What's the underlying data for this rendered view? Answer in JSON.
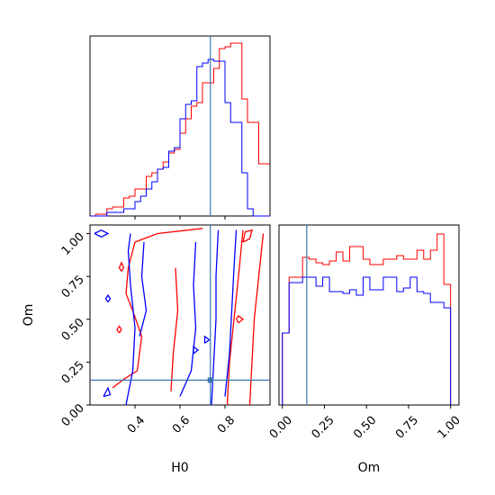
{
  "chart_data": [
    {
      "panel": "top-left",
      "type": "histogram",
      "title": "",
      "xlabel": "",
      "ylabel": "",
      "xlim": [
        0.2,
        1.0
      ],
      "x_ticks": [
        0.4,
        0.6,
        0.8
      ],
      "x_tick_labels_visible": false,
      "y_ticks_visible": false,
      "truth_line_x": 0.735,
      "bin_edges": [
        0.2,
        0.225,
        0.25,
        0.275,
        0.3,
        0.325,
        0.35,
        0.375,
        0.4,
        0.425,
        0.45,
        0.475,
        0.5,
        0.525,
        0.55,
        0.575,
        0.6,
        0.625,
        0.65,
        0.675,
        0.7,
        0.725,
        0.75,
        0.775,
        0.8,
        0.825,
        0.85,
        0.875,
        0.9,
        0.925,
        0.95,
        0.975,
        1.0
      ],
      "series": [
        {
          "color": "#ff0000",
          "values": [
            0,
            0.01,
            0.01,
            0.04,
            0.05,
            0.05,
            0.1,
            0.11,
            0.15,
            0.15,
            0.22,
            0.24,
            0.26,
            0.3,
            0.35,
            0.37,
            0.46,
            0.54,
            0.61,
            0.63,
            0.74,
            0.74,
            0.82,
            0.93,
            0.94,
            0.96,
            0.96,
            0.65,
            0.52,
            0.52,
            0.29,
            0.29
          ]
        },
        {
          "color": "#0000ff",
          "values": [
            0,
            0,
            0,
            0.02,
            0.02,
            0.02,
            0.04,
            0.04,
            0.08,
            0.11,
            0.15,
            0.19,
            0.26,
            0.27,
            0.36,
            0.38,
            0.54,
            0.62,
            0.64,
            0.83,
            0.85,
            0.87,
            0.86,
            0.86,
            0.63,
            0.52,
            0.52,
            0.24,
            0.04,
            0,
            0,
            0
          ]
        }
      ]
    },
    {
      "panel": "bottom-left",
      "type": "contour",
      "title": "",
      "xlabel": "H0",
      "ylabel": "Om",
      "xlim": [
        0.2,
        1.0
      ],
      "ylim": [
        0.0,
        1.05
      ],
      "x_ticks": [
        0.4,
        0.6,
        0.8
      ],
      "x_tick_labels": [
        "0.4",
        "0.6",
        "0.8"
      ],
      "y_ticks": [
        0.0,
        0.25,
        0.5,
        0.75,
        1.0
      ],
      "y_tick_labels": [
        "0.00",
        "0.25",
        "0.50",
        "0.75",
        "1.00"
      ],
      "truth_point": [
        0.735,
        0.145
      ],
      "series": [
        {
          "color": "#ff0000",
          "contours": [
            [
              [
                0.91,
                0.0
              ],
              [
                0.92,
                0.25
              ],
              [
                0.93,
                0.5
              ],
              [
                0.95,
                0.75
              ],
              [
                0.97,
                1.0
              ]
            ],
            [
              [
                0.81,
                0.0
              ],
              [
                0.82,
                0.25
              ],
              [
                0.84,
                0.5
              ],
              [
                0.86,
                0.75
              ],
              [
                0.88,
                1.02
              ]
            ],
            [
              [
                0.3,
                0.1
              ],
              [
                0.35,
                0.15
              ],
              [
                0.41,
                0.2
              ],
              [
                0.43,
                0.4
              ],
              [
                0.39,
                0.55
              ],
              [
                0.36,
                0.65
              ],
              [
                0.37,
                0.8
              ],
              [
                0.4,
                0.95
              ],
              [
                0.5,
                1.0
              ],
              [
                0.7,
                1.03
              ]
            ],
            [
              [
                0.56,
                0.08
              ],
              [
                0.57,
                0.3
              ],
              [
                0.59,
                0.55
              ],
              [
                0.58,
                0.8
              ]
            ],
            [
              [
                0.85,
                0.5
              ],
              [
                0.86,
                0.52
              ],
              [
                0.88,
                0.5
              ],
              [
                0.86,
                0.48
              ],
              [
                0.85,
                0.5
              ]
            ],
            [
              [
                0.88,
                0.95
              ],
              [
                0.91,
                0.97
              ],
              [
                0.92,
                1.02
              ],
              [
                0.89,
                1.01
              ],
              [
                0.88,
                0.95
              ]
            ],
            [
              [
                0.34,
                0.78
              ],
              [
                0.35,
                0.8
              ],
              [
                0.34,
                0.83
              ],
              [
                0.33,
                0.8
              ],
              [
                0.34,
                0.78
              ]
            ],
            [
              [
                0.33,
                0.42
              ],
              [
                0.34,
                0.44
              ],
              [
                0.33,
                0.46
              ],
              [
                0.32,
                0.44
              ],
              [
                0.33,
                0.42
              ]
            ]
          ]
        },
        {
          "color": "#0000ff",
          "contours": [
            [
              [
                0.74,
                0.0
              ],
              [
                0.75,
                0.25
              ],
              [
                0.76,
                0.5
              ],
              [
                0.76,
                0.75
              ],
              [
                0.77,
                1.02
              ]
            ],
            [
              [
                0.6,
                0.05
              ],
              [
                0.65,
                0.2
              ],
              [
                0.67,
                0.45
              ],
              [
                0.66,
                0.7
              ],
              [
                0.67,
                0.95
              ]
            ],
            [
              [
                0.8,
                0.05
              ],
              [
                0.82,
                0.3
              ],
              [
                0.83,
                0.55
              ],
              [
                0.84,
                0.8
              ],
              [
                0.85,
                1.02
              ]
            ],
            [
              [
                0.36,
                0.0
              ],
              [
                0.39,
                0.2
              ],
              [
                0.4,
                0.45
              ],
              [
                0.38,
                0.7
              ],
              [
                0.37,
                0.9
              ],
              [
                0.38,
                1.0
              ]
            ],
            [
              [
                0.42,
                0.4
              ],
              [
                0.45,
                0.55
              ],
              [
                0.43,
                0.75
              ],
              [
                0.44,
                0.95
              ]
            ],
            [
              [
                0.22,
                1.0
              ],
              [
                0.25,
                0.98
              ],
              [
                0.28,
                1.0
              ],
              [
                0.25,
                1.02
              ],
              [
                0.22,
                1.0
              ]
            ],
            [
              [
                0.26,
                0.05
              ],
              [
                0.28,
                0.1
              ],
              [
                0.29,
                0.06
              ],
              [
                0.26,
                0.05
              ]
            ],
            [
              [
                0.28,
                0.6
              ],
              [
                0.29,
                0.62
              ],
              [
                0.28,
                0.64
              ],
              [
                0.27,
                0.62
              ],
              [
                0.28,
                0.6
              ]
            ],
            [
              [
                0.66,
                0.3
              ],
              [
                0.68,
                0.32
              ],
              [
                0.66,
                0.34
              ],
              [
                0.66,
                0.3
              ]
            ],
            [
              [
                0.71,
                0.36
              ],
              [
                0.73,
                0.38
              ],
              [
                0.71,
                0.4
              ],
              [
                0.71,
                0.36
              ]
            ]
          ]
        }
      ]
    },
    {
      "panel": "bottom-right",
      "type": "histogram",
      "title": "",
      "xlabel": "Om",
      "ylabel": "",
      "xlim": [
        -0.02,
        1.05
      ],
      "x_ticks": [
        0.0,
        0.25,
        0.5,
        0.75,
        1.0
      ],
      "x_tick_labels": [
        "0.00",
        "0.25",
        "0.50",
        "0.75",
        "1.00"
      ],
      "y_ticks_visible": false,
      "truth_line_x": 0.145,
      "bin_edges": [
        0.0,
        0.04,
        0.08,
        0.12,
        0.16,
        0.2,
        0.24,
        0.28,
        0.32,
        0.36,
        0.4,
        0.44,
        0.48,
        0.52,
        0.56,
        0.6,
        0.64,
        0.68,
        0.72,
        0.76,
        0.8,
        0.84,
        0.88,
        0.92,
        0.96,
        1.0
      ],
      "series": [
        {
          "color": "#ff0000",
          "values": [
            0.4,
            0.71,
            0.71,
            0.82,
            0.81,
            0.79,
            0.78,
            0.8,
            0.85,
            0.8,
            0.88,
            0.88,
            0.81,
            0.78,
            0.78,
            0.81,
            0.81,
            0.83,
            0.81,
            0.81,
            0.86,
            0.81,
            0.86,
            0.95,
            0.67
          ]
        },
        {
          "color": "#0000ff",
          "values": [
            0.4,
            0.68,
            0.68,
            0.71,
            0.71,
            0.66,
            0.71,
            0.63,
            0.63,
            0.62,
            0.64,
            0.61,
            0.71,
            0.64,
            0.64,
            0.71,
            0.71,
            0.63,
            0.65,
            0.71,
            0.63,
            0.62,
            0.57,
            0.57,
            0.54
          ]
        }
      ]
    }
  ]
}
